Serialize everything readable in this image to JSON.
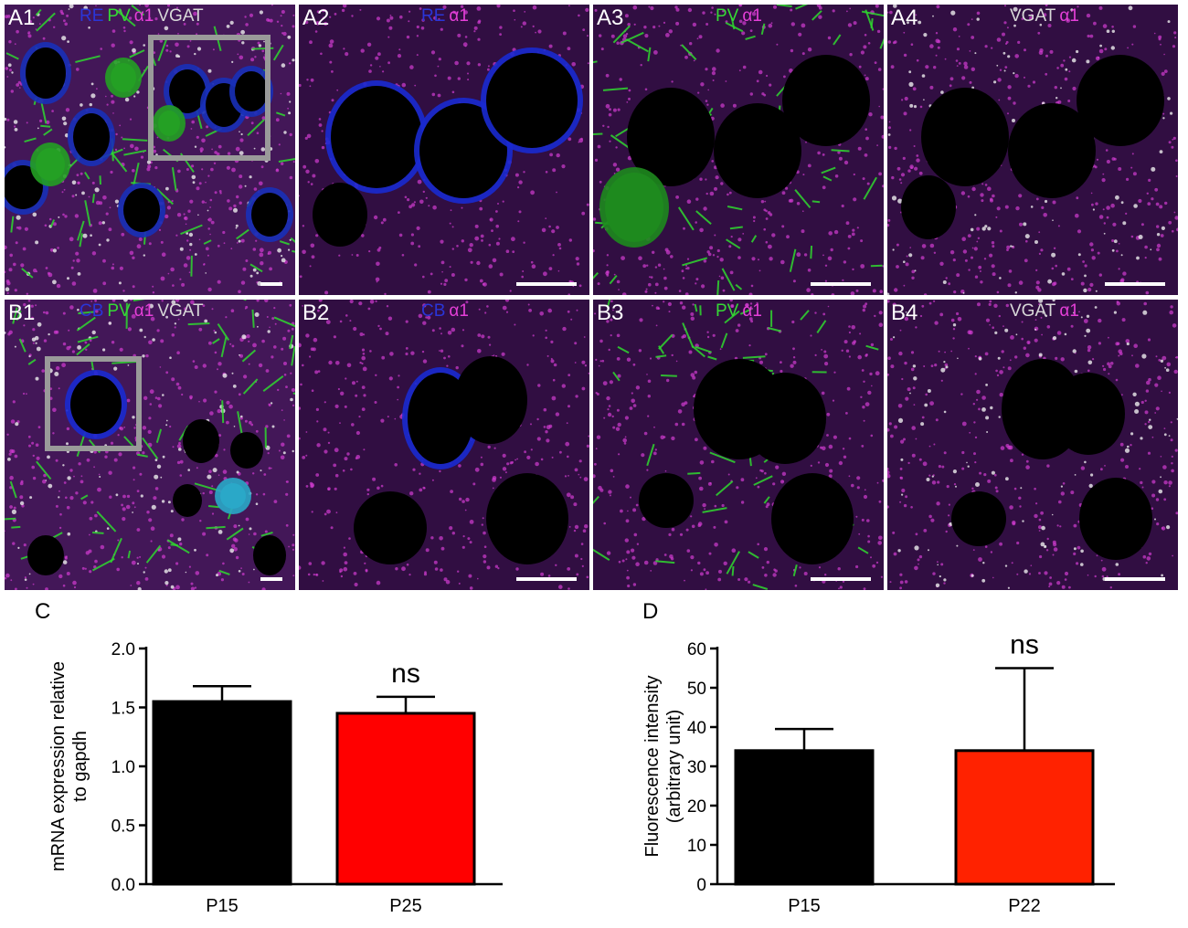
{
  "panels": [
    {
      "id": "A1",
      "channels": [
        {
          "text": "RE",
          "color": "#2a35d8"
        },
        {
          "text": "PV",
          "color": "#35d835"
        },
        {
          "text": "α1",
          "color": "#e53fd8"
        },
        {
          "text": "VGAT",
          "color": "#d8d8d8"
        }
      ]
    },
    {
      "id": "A2",
      "channels": [
        {
          "text": "RE",
          "color": "#2a35d8"
        },
        {
          "text": "α1",
          "color": "#e53fd8"
        }
      ]
    },
    {
      "id": "A3",
      "channels": [
        {
          "text": "PV",
          "color": "#35d835"
        },
        {
          "text": "α1",
          "color": "#e53fd8"
        }
      ]
    },
    {
      "id": "A4",
      "channels": [
        {
          "text": "VGAT",
          "color": "#d8d8d8"
        },
        {
          "text": "α1",
          "color": "#e53fd8"
        }
      ]
    },
    {
      "id": "B1",
      "channels": [
        {
          "text": "CB",
          "color": "#2a35d8"
        },
        {
          "text": "PV",
          "color": "#35d835"
        },
        {
          "text": "α1",
          "color": "#e53fd8"
        },
        {
          "text": "VGAT",
          "color": "#d8d8d8"
        }
      ]
    },
    {
      "id": "B2",
      "channels": [
        {
          "text": "CB",
          "color": "#2a35d8"
        },
        {
          "text": "α1",
          "color": "#e53fd8"
        }
      ]
    },
    {
      "id": "B3",
      "channels": [
        {
          "text": "PV",
          "color": "#35d835"
        },
        {
          "text": "α1",
          "color": "#e53fd8"
        }
      ]
    },
    {
      "id": "B4",
      "channels": [
        {
          "text": "VGAT",
          "color": "#d8d8d8"
        },
        {
          "text": "α1",
          "color": "#e53fd8"
        }
      ]
    }
  ],
  "chart_data": [
    {
      "panel": "C",
      "type": "bar",
      "categories": [
        "P15",
        "P25"
      ],
      "values": [
        1.55,
        1.45
      ],
      "errors": [
        0.13,
        0.14
      ],
      "colors": [
        "#000000",
        "#ff0000"
      ],
      "ylabel": "mRNA expression relative to gapdh",
      "ylabel_lines": [
        "mRNA expression relative",
        "to gapdh"
      ],
      "ylim": [
        0,
        2.0
      ],
      "yticks": [
        "0.0",
        "0.5",
        "1.0",
        "1.5",
        "2.0"
      ],
      "annotation": "ns"
    },
    {
      "panel": "D",
      "type": "bar",
      "categories": [
        "P15",
        "P22"
      ],
      "values": [
        34,
        34
      ],
      "errors": [
        5.5,
        21
      ],
      "colors": [
        "#000000",
        "#ff2200"
      ],
      "ylabel": "Fluorescence intensity (arbitrary unit)",
      "ylabel_lines": [
        "Fluorescence intensity",
        "(arbitrary unit)"
      ],
      "ylim": [
        0,
        60
      ],
      "yticks": [
        "0",
        "10",
        "20",
        "30",
        "40",
        "50",
        "60"
      ],
      "annotation": "ns"
    }
  ]
}
